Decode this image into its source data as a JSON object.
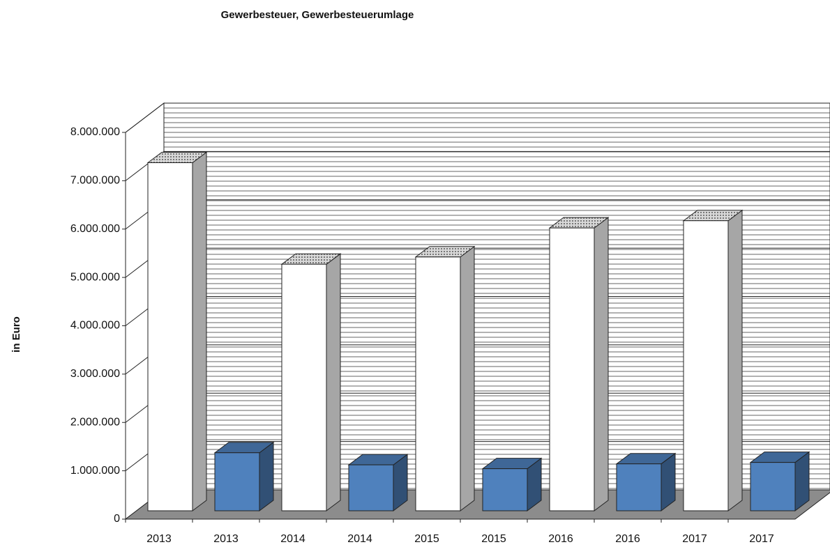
{
  "chart_data": {
    "type": "bar3d",
    "title": "Gewerbesteuer,  Gewerbesteuerumlage",
    "y_label": "in Euro",
    "categories": [
      "2013",
      "2013",
      "2014",
      "2014",
      "2015",
      "2015",
      "2016",
      "2016",
      "2017",
      "2017"
    ],
    "values": [
      7200000,
      1200000,
      5100000,
      950000,
      5250000,
      870000,
      5850000,
      970000,
      6000000,
      1000000
    ],
    "colors": [
      "#ffffff",
      "#4f81bd",
      "#ffffff",
      "#4f81bd",
      "#ffffff",
      "#4f81bd",
      "#ffffff",
      "#4f81bd",
      "#ffffff",
      "#4f81bd"
    ],
    "ylim": [
      0,
      8000000
    ],
    "yticks": [
      0,
      {
        "value": 1000000,
        "label": "1.000.000"
      },
      {
        "value": 2000000,
        "label": "2.000.000"
      },
      {
        "value": 3000000,
        "label": "3.000.000"
      },
      {
        "value": 4000000,
        "label": "4.000.000"
      },
      {
        "value": 5000000,
        "label": "5.000.000"
      },
      {
        "value": 6000000,
        "label": "6.000.000"
      },
      {
        "value": 7000000,
        "label": "7.000.000"
      },
      {
        "value": 8000000,
        "label": "8.000.000"
      }
    ],
    "grid": true
  }
}
